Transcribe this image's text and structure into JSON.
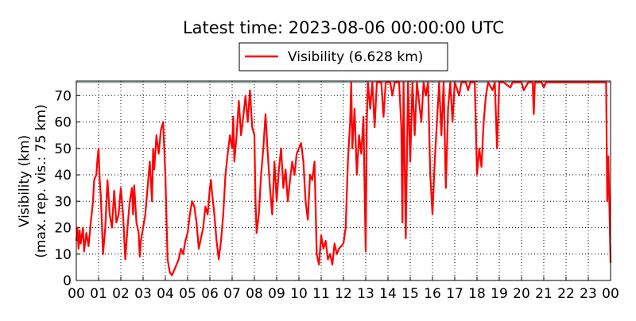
{
  "chart_data": {
    "type": "line",
    "title": "Latest time: 2023-08-06 00:00:00 UTC",
    "ylabel": [
      "Visibility (km)",
      "(max. rep. vis.: 75 km)"
    ],
    "max_line": 75,
    "max_line_color": "#7f9f9f",
    "grid": true,
    "xlim": [
      0,
      24
    ],
    "xticks": [
      {
        "value": 0,
        "label": "00"
      },
      {
        "value": 1,
        "label": "01"
      },
      {
        "value": 2,
        "label": "02"
      },
      {
        "value": 3,
        "label": "03"
      },
      {
        "value": 4,
        "label": "04"
      },
      {
        "value": 5,
        "label": "05"
      },
      {
        "value": 6,
        "label": "06"
      },
      {
        "value": 7,
        "label": "07"
      },
      {
        "value": 8,
        "label": "08"
      },
      {
        "value": 9,
        "label": "09"
      },
      {
        "value": 10,
        "label": "10"
      },
      {
        "value": 11,
        "label": "11"
      },
      {
        "value": 12,
        "label": "12"
      },
      {
        "value": 13,
        "label": "13"
      },
      {
        "value": 14,
        "label": "14"
      },
      {
        "value": 15,
        "label": "15"
      },
      {
        "value": 16,
        "label": "16"
      },
      {
        "value": 17,
        "label": "17"
      },
      {
        "value": 18,
        "label": "18"
      },
      {
        "value": 19,
        "label": "19"
      },
      {
        "value": 20,
        "label": "20"
      },
      {
        "value": 21,
        "label": "21"
      },
      {
        "value": 22,
        "label": "22"
      },
      {
        "value": 23,
        "label": "23"
      },
      {
        "value": 24,
        "label": "00"
      }
    ],
    "ylim": [
      0,
      75.5
    ],
    "yticks": [
      0,
      10,
      20,
      30,
      40,
      50,
      60,
      70
    ],
    "x": [
      0,
      0.05,
      0.1,
      0.15,
      0.2,
      0.3,
      0.35,
      0.45,
      0.55,
      0.65,
      0.75,
      0.8,
      0.9,
      0.95,
      1.0,
      1.05,
      1.1,
      1.2,
      1.3,
      1.4,
      1.5,
      1.6,
      1.7,
      1.8,
      1.9,
      2.0,
      2.1,
      2.2,
      2.3,
      2.4,
      2.5,
      2.55,
      2.6,
      2.7,
      2.8,
      2.85,
      2.9,
      3.0,
      3.1,
      3.2,
      3.3,
      3.4,
      3.45,
      3.5,
      3.6,
      3.7,
      3.8,
      3.9,
      4.0,
      4.1,
      4.2,
      4.3,
      4.4,
      4.5,
      4.6,
      4.7,
      4.8,
      4.9,
      5.0,
      5.1,
      5.2,
      5.3,
      5.4,
      5.5,
      5.6,
      5.7,
      5.8,
      5.9,
      6.0,
      6.05,
      6.1,
      6.2,
      6.3,
      6.4,
      6.5,
      6.6,
      6.7,
      6.8,
      6.9,
      7.0,
      7.05,
      7.1,
      7.2,
      7.3,
      7.4,
      7.5,
      7.6,
      7.7,
      7.8,
      7.9,
      8.0,
      8.05,
      8.1,
      8.2,
      8.3,
      8.4,
      8.5,
      8.6,
      8.7,
      8.8,
      8.9,
      9.0,
      9.1,
      9.2,
      9.3,
      9.4,
      9.5,
      9.6,
      9.7,
      9.8,
      9.9,
      10.0,
      10.1,
      10.2,
      10.3,
      10.4,
      10.5,
      10.6,
      10.7,
      10.8,
      10.9,
      11.0,
      11.1,
      11.2,
      11.3,
      11.4,
      11.5,
      11.6,
      11.7,
      11.8,
      11.9,
      12.0,
      12.1,
      12.2,
      12.3,
      12.35,
      12.4,
      12.5,
      12.6,
      12.7,
      12.8,
      12.9,
      12.95,
      13.0,
      13.05,
      13.1,
      13.2,
      13.3,
      13.4,
      13.5,
      13.7,
      13.8,
      13.9,
      14.1,
      14.2,
      14.3,
      14.5,
      14.6,
      14.65,
      14.7,
      14.8,
      14.9,
      15.0,
      15.1,
      15.2,
      15.3,
      15.5,
      15.6,
      15.7,
      15.8,
      15.9,
      16.0,
      16.1,
      16.2,
      16.3,
      16.4,
      16.5,
      16.6,
      16.7,
      16.8,
      16.9,
      17.0,
      17.2,
      17.3,
      17.5,
      17.6,
      17.7,
      17.9,
      18.0,
      18.1,
      18.2,
      18.3,
      18.4,
      18.5,
      18.7,
      18.8,
      18.9,
      19.0,
      19.2,
      19.5,
      19.6,
      20.0,
      20.1,
      20.3,
      20.5,
      20.55,
      20.6,
      20.9,
      21.0,
      21.1,
      23.8,
      23.85,
      23.9,
      24.0
    ],
    "series": [
      {
        "name": "Visibility (6.628 km)",
        "color": "#ff0000",
        "values": [
          15,
          20,
          12,
          19,
          14,
          20,
          11,
          18,
          13,
          22,
          30,
          38,
          40,
          46,
          50,
          38,
          32,
          10,
          20,
          38,
          25,
          20,
          34,
          22,
          25,
          35,
          25,
          8,
          20,
          30,
          35,
          25,
          36,
          22,
          18,
          9,
          15,
          20,
          25,
          35,
          45,
          30,
          50,
          42,
          55,
          48,
          57,
          60,
          40,
          8,
          3,
          2,
          4,
          6,
          8,
          12,
          10,
          15,
          18,
          25,
          30,
          28,
          22,
          12,
          16,
          20,
          28,
          25,
          35,
          38,
          33,
          25,
          15,
          8,
          15,
          25,
          40,
          48,
          55,
          50,
          62,
          45,
          55,
          68,
          55,
          62,
          70,
          60,
          72,
          58,
          55,
          30,
          18,
          25,
          40,
          50,
          63,
          48,
          35,
          25,
          45,
          30,
          42,
          50,
          35,
          42,
          30,
          38,
          45,
          40,
          48,
          50,
          52,
          45,
          30,
          23,
          40,
          38,
          45,
          10,
          6,
          17,
          12,
          15,
          8,
          10,
          6,
          14,
          10,
          12,
          13,
          14,
          20,
          45,
          60,
          75,
          50,
          65,
          40,
          55,
          48,
          62,
          35,
          11,
          60,
          75,
          65,
          75,
          58,
          75,
          75,
          62,
          75,
          75,
          70,
          75,
          75,
          58,
          22,
          75,
          16,
          75,
          45,
          75,
          55,
          75,
          60,
          75,
          70,
          75,
          40,
          25,
          45,
          60,
          75,
          55,
          75,
          35,
          65,
          75,
          60,
          75,
          70,
          75,
          75,
          72,
          75,
          75,
          40,
          50,
          43,
          60,
          70,
          75,
          72,
          75,
          50,
          75,
          75,
          73,
          75,
          75,
          72,
          75,
          75,
          63,
          75,
          75,
          73,
          75,
          75,
          30,
          47,
          6.628
        ]
      }
    ]
  }
}
